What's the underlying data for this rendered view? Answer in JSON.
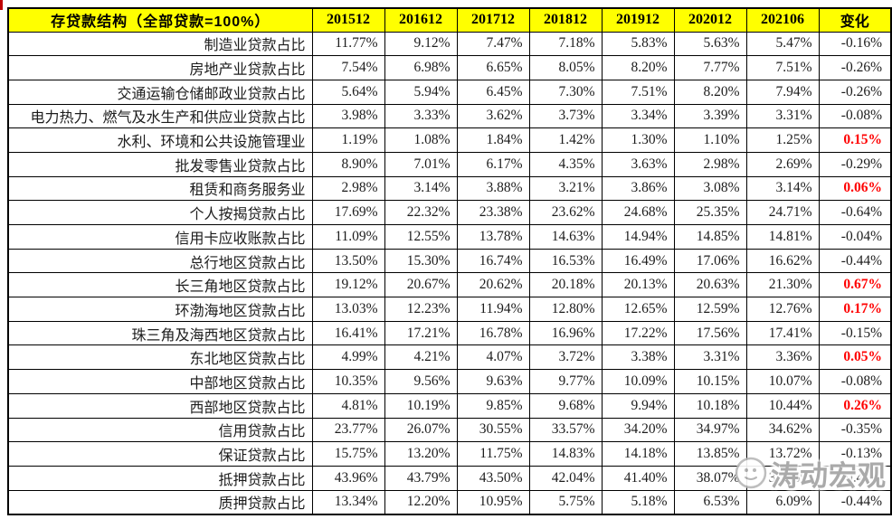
{
  "colors": {
    "header_bg": "#FFFF00",
    "header_text": "#000000",
    "body_text": "#1C1C1C",
    "positive_change": "#FF0000",
    "border": "#000000",
    "watermark_gray": "#9E9E9E",
    "edge_artifact_red": "#C00000"
  },
  "watermark": {
    "text": "涛动宏观",
    "logo": "chat-bubble-logo"
  },
  "table": {
    "header": {
      "title": "存贷款结构（全部贷款=100%）",
      "columns": [
        "201512",
        "201612",
        "201712",
        "201812",
        "201912",
        "202012",
        "202106"
      ],
      "change_label": "变化"
    },
    "rows": [
      {
        "label": "制造业贷款占比",
        "values": [
          "11.77%",
          "9.12%",
          "7.47%",
          "7.18%",
          "5.83%",
          "5.63%",
          "5.47%"
        ],
        "change": "-0.16%"
      },
      {
        "label": "房地产业贷款占比",
        "values": [
          "7.54%",
          "6.98%",
          "6.65%",
          "8.05%",
          "8.20%",
          "7.77%",
          "7.51%"
        ],
        "change": "-0.26%"
      },
      {
        "label": "交通运输仓储邮政业贷款占比",
        "values": [
          "5.64%",
          "5.94%",
          "6.45%",
          "7.30%",
          "7.51%",
          "8.20%",
          "7.94%"
        ],
        "change": "-0.26%"
      },
      {
        "label": "电力热力、燃气及水生产和供应业贷款占比",
        "values": [
          "3.98%",
          "3.33%",
          "3.62%",
          "3.73%",
          "3.34%",
          "3.39%",
          "3.31%"
        ],
        "change": "-0.08%"
      },
      {
        "label": "水利、环境和公共设施管理业",
        "values": [
          "1.19%",
          "1.08%",
          "1.84%",
          "1.42%",
          "1.30%",
          "1.10%",
          "1.25%"
        ],
        "change": "0.15%"
      },
      {
        "label": "批发零售业贷款占比",
        "values": [
          "8.90%",
          "7.01%",
          "6.17%",
          "4.35%",
          "3.63%",
          "2.98%",
          "2.69%"
        ],
        "change": "-0.29%"
      },
      {
        "label": "租赁和商务服务业",
        "values": [
          "2.98%",
          "3.14%",
          "3.88%",
          "3.21%",
          "3.86%",
          "3.08%",
          "3.14%"
        ],
        "change": "0.06%"
      },
      {
        "label": "个人按揭贷款占比",
        "values": [
          "17.69%",
          "22.32%",
          "23.38%",
          "23.62%",
          "24.68%",
          "25.35%",
          "24.71%"
        ],
        "change": "-0.64%"
      },
      {
        "label": "信用卡应收账款占比",
        "values": [
          "11.09%",
          "12.55%",
          "13.78%",
          "14.63%",
          "14.94%",
          "14.85%",
          "14.81%"
        ],
        "change": "-0.04%"
      },
      {
        "label": "总行地区贷款占比",
        "values": [
          "13.50%",
          "15.30%",
          "16.74%",
          "16.53%",
          "16.49%",
          "17.06%",
          "16.62%"
        ],
        "change": "-0.44%"
      },
      {
        "label": "长三角地区贷款占比",
        "values": [
          "19.12%",
          "20.67%",
          "20.62%",
          "20.18%",
          "20.13%",
          "20.63%",
          "21.30%"
        ],
        "change": "0.67%"
      },
      {
        "label": "环渤海地区贷款占比",
        "values": [
          "13.03%",
          "12.23%",
          "11.94%",
          "12.80%",
          "12.65%",
          "12.59%",
          "12.76%"
        ],
        "change": "0.17%"
      },
      {
        "label": "珠三角及海西地区贷款占比",
        "values": [
          "16.41%",
          "17.21%",
          "16.78%",
          "16.96%",
          "17.22%",
          "17.56%",
          "17.41%"
        ],
        "change": "-0.15%"
      },
      {
        "label": "东北地区贷款占比",
        "values": [
          "4.99%",
          "4.21%",
          "4.07%",
          "3.72%",
          "3.38%",
          "3.31%",
          "3.36%"
        ],
        "change": "0.05%"
      },
      {
        "label": "中部地区贷款占比",
        "values": [
          "10.35%",
          "9.56%",
          "9.63%",
          "9.77%",
          "10.09%",
          "10.15%",
          "10.07%"
        ],
        "change": "-0.08%"
      },
      {
        "label": "西部地区贷款占比",
        "values": [
          "4.81%",
          "10.19%",
          "9.85%",
          "9.68%",
          "9.94%",
          "10.18%",
          "10.44%"
        ],
        "change": "0.26%"
      },
      {
        "label": "信用贷款占比",
        "values": [
          "23.77%",
          "26.07%",
          "30.55%",
          "33.57%",
          "34.20%",
          "34.97%",
          "34.62%"
        ],
        "change": "-0.35%"
      },
      {
        "label": "保证贷款占比",
        "values": [
          "15.75%",
          "13.20%",
          "11.75%",
          "14.83%",
          "14.18%",
          "13.85%",
          "13.72%"
        ],
        "change": "-0.13%"
      },
      {
        "label": "抵押贷款占比",
        "values": [
          "43.96%",
          "43.79%",
          "43.50%",
          "42.04%",
          "41.40%",
          "38.07%",
          "37.65%"
        ],
        "change": "-0.42%"
      },
      {
        "label": "质押贷款占比",
        "values": [
          "13.34%",
          "12.20%",
          "10.95%",
          "5.75%",
          "5.18%",
          "6.53%",
          "6.09%"
        ],
        "change": "-0.44%"
      }
    ]
  }
}
